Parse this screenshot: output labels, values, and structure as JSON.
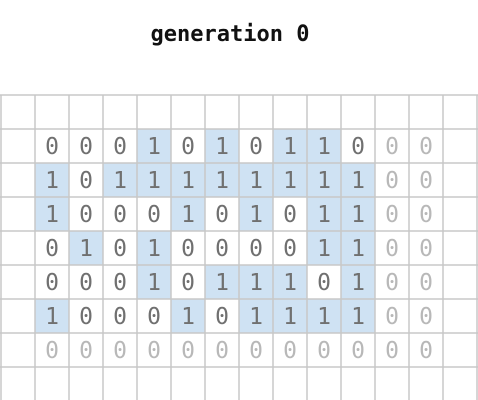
{
  "title": "generation 0",
  "colors": {
    "grid_line": "#c8c8c8",
    "highlight": "#cfe2f3",
    "bit_active": "#707070",
    "bit_pad": "#b8b8b8",
    "background": "#ffffff"
  },
  "rows": [
    [
      "0",
      "0",
      "0",
      "1",
      "0",
      "1",
      "0",
      "1",
      "1",
      "0",
      "0",
      "0"
    ],
    [
      "1",
      "0",
      "1",
      "1",
      "1",
      "1",
      "1",
      "1",
      "1",
      "1",
      "0",
      "0"
    ],
    [
      "1",
      "0",
      "0",
      "0",
      "1",
      "0",
      "1",
      "0",
      "1",
      "1",
      "0",
      "0"
    ],
    [
      "0",
      "1",
      "0",
      "1",
      "0",
      "0",
      "0",
      "0",
      "1",
      "1",
      "0",
      "0"
    ],
    [
      "0",
      "0",
      "0",
      "1",
      "0",
      "1",
      "1",
      "1",
      "0",
      "1",
      "0",
      "0"
    ],
    [
      "1",
      "0",
      "0",
      "0",
      "1",
      "0",
      "1",
      "1",
      "1",
      "1",
      "0",
      "0"
    ],
    [
      "0",
      "0",
      "0",
      "0",
      "0",
      "0",
      "0",
      "0",
      "0",
      "0",
      "0",
      "0"
    ]
  ],
  "padding_rows": [
    6
  ],
  "padding_cols": [
    10,
    11
  ]
}
